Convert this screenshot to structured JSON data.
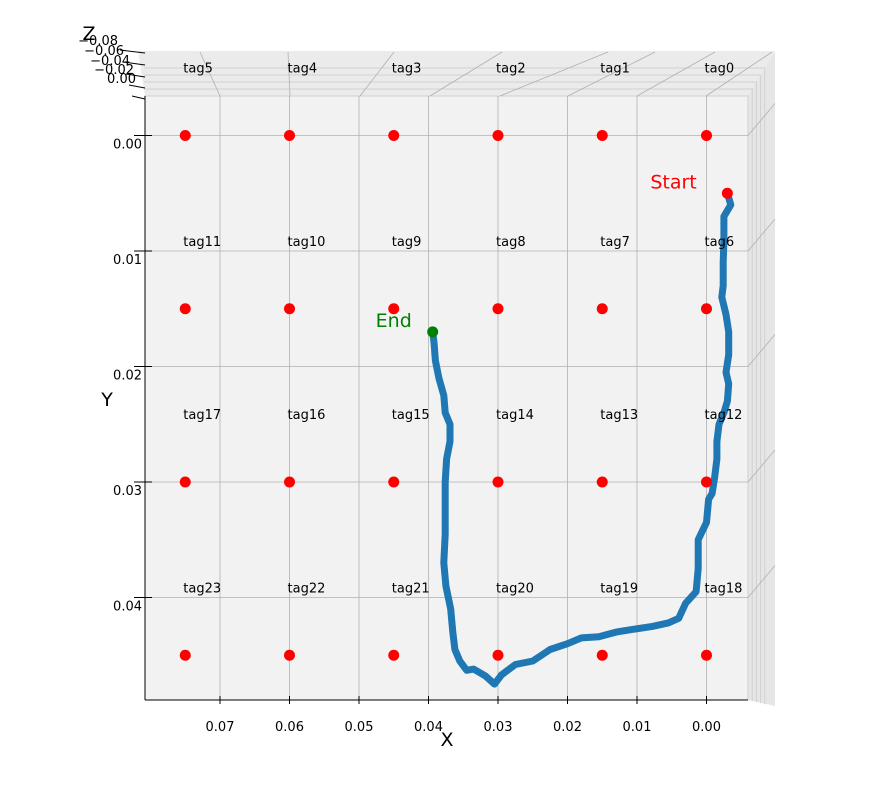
{
  "chart_data": {
    "type": "scatter",
    "projection": "3d, viewed from above (X-Y plane)",
    "xlabel": "X",
    "ylabel": "Y",
    "zlabel": "Z",
    "x_inverted": true,
    "y_inverted": true,
    "xlim": [
      -0.006,
      0.081
    ],
    "ylim": [
      -0.0055,
      0.0495
    ],
    "x_ticks": [
      "0.07",
      "0.06",
      "0.05",
      "0.04",
      "0.03",
      "0.02",
      "0.01",
      "0.00"
    ],
    "x_tick_values": [
      0.07,
      0.06,
      0.05,
      0.04,
      0.03,
      0.02,
      0.01,
      0.0
    ],
    "y_ticks": [
      "0.00",
      "0.01",
      "0.02",
      "0.03",
      "0.04"
    ],
    "y_tick_values": [
      0.0,
      0.01,
      0.02,
      0.03,
      0.04
    ],
    "z_ticks": [
      "−0.08",
      "−0.06",
      "−0.04",
      "−0.02",
      "0.00"
    ],
    "grid": true,
    "colors": {
      "tag_marker": "#ff0000",
      "trajectory": "#1f77b4",
      "end_marker": "#008000",
      "start_label": "#ff0000",
      "end_label": "#008000",
      "pane": "#f2f2f2",
      "grid": "#b0b0b0"
    },
    "tags": [
      {
        "name": "tag0",
        "x": 0.0,
        "y": 0.0
      },
      {
        "name": "tag1",
        "x": 0.015,
        "y": 0.0
      },
      {
        "name": "tag2",
        "x": 0.03,
        "y": 0.0
      },
      {
        "name": "tag3",
        "x": 0.045,
        "y": 0.0
      },
      {
        "name": "tag4",
        "x": 0.06,
        "y": 0.0
      },
      {
        "name": "tag5",
        "x": 0.075,
        "y": 0.0
      },
      {
        "name": "tag6",
        "x": 0.0,
        "y": 0.015
      },
      {
        "name": "tag7",
        "x": 0.015,
        "y": 0.015
      },
      {
        "name": "tag8",
        "x": 0.03,
        "y": 0.015
      },
      {
        "name": "tag9",
        "x": 0.045,
        "y": 0.015
      },
      {
        "name": "tag10",
        "x": 0.06,
        "y": 0.015
      },
      {
        "name": "tag11",
        "x": 0.075,
        "y": 0.015
      },
      {
        "name": "tag12",
        "x": 0.0,
        "y": 0.03
      },
      {
        "name": "tag13",
        "x": 0.015,
        "y": 0.03
      },
      {
        "name": "tag14",
        "x": 0.03,
        "y": 0.03
      },
      {
        "name": "tag15",
        "x": 0.045,
        "y": 0.03
      },
      {
        "name": "tag16",
        "x": 0.06,
        "y": 0.03
      },
      {
        "name": "tag17",
        "x": 0.075,
        "y": 0.03
      },
      {
        "name": "tag18",
        "x": 0.0,
        "y": 0.045
      },
      {
        "name": "tag19",
        "x": 0.015,
        "y": 0.045
      },
      {
        "name": "tag20",
        "x": 0.03,
        "y": 0.045
      },
      {
        "name": "tag21",
        "x": 0.045,
        "y": 0.045
      },
      {
        "name": "tag22",
        "x": 0.06,
        "y": 0.045
      },
      {
        "name": "tag23",
        "x": 0.075,
        "y": 0.045
      }
    ],
    "trajectory": [
      [
        -0.003,
        0.005
      ],
      [
        -0.0035,
        0.006
      ],
      [
        -0.0025,
        0.007
      ],
      [
        -0.0025,
        0.009
      ],
      [
        -0.0024,
        0.011
      ],
      [
        -0.0024,
        0.013
      ],
      [
        -0.0022,
        0.014
      ],
      [
        -0.0028,
        0.0155
      ],
      [
        -0.0032,
        0.017
      ],
      [
        -0.0032,
        0.019
      ],
      [
        -0.0028,
        0.0205
      ],
      [
        -0.0032,
        0.0215
      ],
      [
        -0.003,
        0.023
      ],
      [
        -0.0025,
        0.024
      ],
      [
        -0.0018,
        0.025
      ],
      [
        -0.0015,
        0.0265
      ],
      [
        -0.0015,
        0.028
      ],
      [
        -0.0012,
        0.0295
      ],
      [
        -0.0008,
        0.031
      ],
      [
        -0.0003,
        0.0315
      ],
      [
        0.0,
        0.0335
      ],
      [
        0.0012,
        0.035
      ],
      [
        0.0012,
        0.0375
      ],
      [
        0.0015,
        0.0395
      ],
      [
        0.003,
        0.0405
      ],
      [
        0.004,
        0.0418
      ],
      [
        0.0055,
        0.0422
      ],
      [
        0.0078,
        0.0425
      ],
      [
        0.011,
        0.0428
      ],
      [
        0.013,
        0.043
      ],
      [
        0.0155,
        0.0434
      ],
      [
        0.018,
        0.0435
      ],
      [
        0.02,
        0.044
      ],
      [
        0.0225,
        0.0445
      ],
      [
        0.025,
        0.0455
      ],
      [
        0.0275,
        0.0458
      ],
      [
        0.0295,
        0.0467
      ],
      [
        0.0305,
        0.0475
      ],
      [
        0.0318,
        0.0468
      ],
      [
        0.0335,
        0.0462
      ],
      [
        0.0345,
        0.0463
      ],
      [
        0.0355,
        0.0455
      ],
      [
        0.0362,
        0.0445
      ],
      [
        0.0365,
        0.043
      ],
      [
        0.0368,
        0.041
      ],
      [
        0.0375,
        0.039
      ],
      [
        0.0378,
        0.037
      ],
      [
        0.0376,
        0.0345
      ],
      [
        0.0376,
        0.032
      ],
      [
        0.0376,
        0.03
      ],
      [
        0.0374,
        0.028
      ],
      [
        0.0369,
        0.0265
      ],
      [
        0.0369,
        0.025
      ],
      [
        0.0376,
        0.024
      ],
      [
        0.0378,
        0.0225
      ],
      [
        0.0385,
        0.021
      ],
      [
        0.039,
        0.0195
      ],
      [
        0.0392,
        0.018
      ],
      [
        0.0394,
        0.017
      ]
    ],
    "annotations": [
      {
        "text": "Start",
        "color": "#ff0000"
      },
      {
        "text": "End",
        "color": "#008000"
      }
    ]
  }
}
